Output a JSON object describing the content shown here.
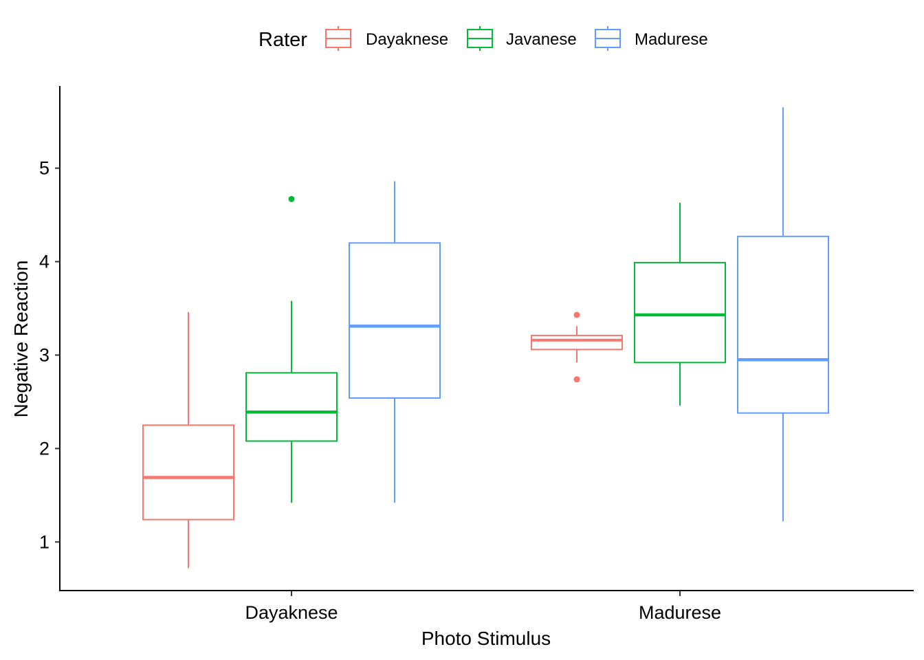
{
  "chart_data": {
    "type": "boxplot",
    "title": "",
    "xlabel": "Photo Stimulus",
    "ylabel": "Negative Reaction",
    "categories": [
      "Dayaknese",
      "Madurese"
    ],
    "yticks": [
      1,
      2,
      3,
      4,
      5
    ],
    "ylim": [
      0.48,
      5.88
    ],
    "grid": false,
    "legend": {
      "title": "Rater",
      "position": "top",
      "entries": [
        "Dayaknese",
        "Javanese",
        "Madurese"
      ]
    },
    "series": [
      {
        "name": "Dayaknese",
        "color": "#F8766D",
        "boxes": [
          {
            "category": "Dayaknese",
            "whisker_low": 0.72,
            "q1": 1.24,
            "median": 1.69,
            "q3": 2.25,
            "whisker_high": 3.46,
            "outliers": []
          },
          {
            "category": "Madurese",
            "whisker_low": 2.92,
            "q1": 3.06,
            "median": 3.16,
            "q3": 3.21,
            "whisker_high": 3.31,
            "outliers": [
              3.43,
              2.74
            ]
          }
        ]
      },
      {
        "name": "Javanese",
        "color": "#00BA38",
        "boxes": [
          {
            "category": "Dayaknese",
            "whisker_low": 1.42,
            "q1": 2.08,
            "median": 2.39,
            "q3": 2.81,
            "whisker_high": 3.58,
            "outliers": [
              4.67
            ]
          },
          {
            "category": "Madurese",
            "whisker_low": 2.46,
            "q1": 2.92,
            "median": 3.43,
            "q3": 3.99,
            "whisker_high": 4.63,
            "outliers": []
          }
        ]
      },
      {
        "name": "Madurese",
        "color": "#619CFF",
        "boxes": [
          {
            "category": "Dayaknese",
            "whisker_low": 1.42,
            "q1": 2.54,
            "median": 3.31,
            "q3": 4.2,
            "whisker_high": 4.86,
            "outliers": []
          },
          {
            "category": "Madurese",
            "whisker_low": 1.22,
            "q1": 2.38,
            "median": 2.95,
            "q3": 4.27,
            "whisker_high": 5.65,
            "outliers": []
          }
        ]
      }
    ]
  }
}
